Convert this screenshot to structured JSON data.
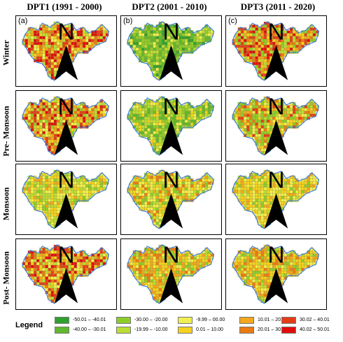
{
  "columns": [
    "DPT1 (1991 - 2000)",
    "DPT2 (2001 - 2010)",
    "DPT3 (2011 - 2020)"
  ],
  "rows": [
    "Winter",
    "Pre- Monsoon",
    "Monsoon",
    "Post- Monsoon"
  ],
  "panel_labels": [
    "(a)",
    "(b)",
    "(c)"
  ],
  "north_label": "N",
  "legend": {
    "title": "Legend",
    "items": [
      {
        "label": "-50.01 – -40.01",
        "color": "#2ea12e"
      },
      {
        "label": "-40.00 – -30.01",
        "color": "#5fb82e"
      },
      {
        "label": "-30.00 – -20.00",
        "color": "#8ccd2a"
      },
      {
        "label": "-19.99 – -10.00",
        "color": "#b9de35"
      },
      {
        "label": "-9.99 – 00.00",
        "color": "#f0f050"
      },
      {
        "label": "0.01 – 10.00",
        "color": "#f5d21e"
      },
      {
        "label": "10.01 – 20.00",
        "color": "#f2a71d"
      },
      {
        "label": "20.01 – 30.01",
        "color": "#ea7a12"
      },
      {
        "label": "30.02 – 40.01",
        "color": "#e43c17"
      },
      {
        "label": "40.02 – 50.01",
        "color": "#e00c0c"
      }
    ]
  },
  "boundary_color": "#3a7bd5"
}
